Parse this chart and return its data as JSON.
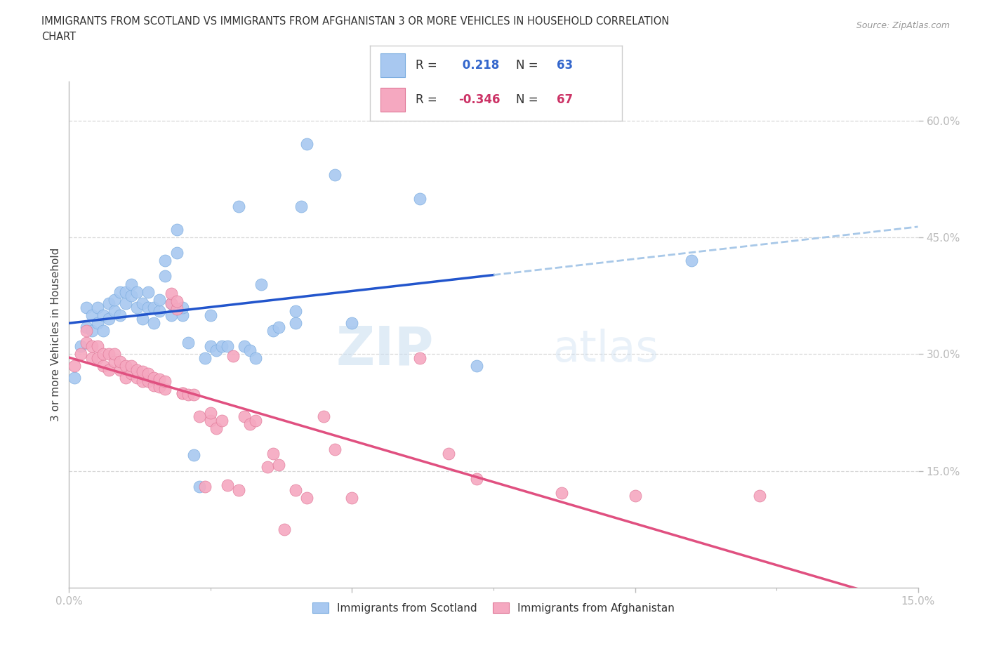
{
  "title_line1": "IMMIGRANTS FROM SCOTLAND VS IMMIGRANTS FROM AFGHANISTAN 3 OR MORE VEHICLES IN HOUSEHOLD CORRELATION",
  "title_line2": "CHART",
  "source": "Source: ZipAtlas.com",
  "ylabel": "3 or more Vehicles in Household",
  "x_min": 0.0,
  "x_max": 0.15,
  "y_min": 0.0,
  "y_max": 0.65,
  "x_ticks": [
    0.0,
    0.05,
    0.1,
    0.15
  ],
  "x_tick_labels": [
    "0.0%",
    "",
    "",
    "15.0%"
  ],
  "y_ticks_right": [
    0.15,
    0.3,
    0.45,
    0.6
  ],
  "y_tick_labels_right": [
    "15.0%",
    "30.0%",
    "45.0%",
    "60.0%"
  ],
  "scotland_color": "#a8c8f0",
  "scotland_edge_color": "#7aacdf",
  "afghanistan_color": "#f5a8c0",
  "afghanistan_edge_color": "#e07898",
  "scotland_line_color": "#2255cc",
  "scotland_line_dashed_color": "#a8c8e8",
  "afghanistan_line_color": "#e05080",
  "grid_color": "#d8d8d8",
  "watermark": "ZIPatlas",
  "legend_R_scotland": "R =  0.218",
  "legend_N_scotland": "N = 63",
  "legend_R_afghanistan": "R = -0.346",
  "legend_N_afghanistan": "N = 67",
  "scotland_points": [
    [
      0.001,
      0.27
    ],
    [
      0.002,
      0.31
    ],
    [
      0.003,
      0.335
    ],
    [
      0.003,
      0.36
    ],
    [
      0.004,
      0.33
    ],
    [
      0.004,
      0.35
    ],
    [
      0.005,
      0.34
    ],
    [
      0.005,
      0.36
    ],
    [
      0.006,
      0.33
    ],
    [
      0.006,
      0.35
    ],
    [
      0.007,
      0.345
    ],
    [
      0.007,
      0.365
    ],
    [
      0.008,
      0.355
    ],
    [
      0.008,
      0.37
    ],
    [
      0.009,
      0.35
    ],
    [
      0.009,
      0.38
    ],
    [
      0.01,
      0.365
    ],
    [
      0.01,
      0.38
    ],
    [
      0.011,
      0.375
    ],
    [
      0.011,
      0.39
    ],
    [
      0.012,
      0.36
    ],
    [
      0.012,
      0.38
    ],
    [
      0.013,
      0.345
    ],
    [
      0.013,
      0.365
    ],
    [
      0.014,
      0.36
    ],
    [
      0.014,
      0.38
    ],
    [
      0.015,
      0.34
    ],
    [
      0.015,
      0.36
    ],
    [
      0.016,
      0.355
    ],
    [
      0.016,
      0.37
    ],
    [
      0.017,
      0.4
    ],
    [
      0.017,
      0.42
    ],
    [
      0.018,
      0.35
    ],
    [
      0.018,
      0.365
    ],
    [
      0.019,
      0.43
    ],
    [
      0.019,
      0.46
    ],
    [
      0.02,
      0.35
    ],
    [
      0.02,
      0.36
    ],
    [
      0.021,
      0.315
    ],
    [
      0.022,
      0.17
    ],
    [
      0.023,
      0.13
    ],
    [
      0.024,
      0.295
    ],
    [
      0.025,
      0.31
    ],
    [
      0.025,
      0.35
    ],
    [
      0.026,
      0.305
    ],
    [
      0.027,
      0.31
    ],
    [
      0.028,
      0.31
    ],
    [
      0.03,
      0.49
    ],
    [
      0.031,
      0.31
    ],
    [
      0.032,
      0.305
    ],
    [
      0.033,
      0.295
    ],
    [
      0.034,
      0.39
    ],
    [
      0.036,
      0.33
    ],
    [
      0.037,
      0.335
    ],
    [
      0.04,
      0.34
    ],
    [
      0.04,
      0.355
    ],
    [
      0.041,
      0.49
    ],
    [
      0.042,
      0.57
    ],
    [
      0.047,
      0.53
    ],
    [
      0.05,
      0.34
    ],
    [
      0.062,
      0.5
    ],
    [
      0.072,
      0.285
    ],
    [
      0.11,
      0.42
    ]
  ],
  "afghanistan_points": [
    [
      0.001,
      0.285
    ],
    [
      0.002,
      0.3
    ],
    [
      0.003,
      0.315
    ],
    [
      0.003,
      0.33
    ],
    [
      0.004,
      0.295
    ],
    [
      0.004,
      0.31
    ],
    [
      0.005,
      0.295
    ],
    [
      0.005,
      0.31
    ],
    [
      0.006,
      0.285
    ],
    [
      0.006,
      0.3
    ],
    [
      0.007,
      0.28
    ],
    [
      0.007,
      0.3
    ],
    [
      0.008,
      0.29
    ],
    [
      0.008,
      0.3
    ],
    [
      0.009,
      0.28
    ],
    [
      0.009,
      0.29
    ],
    [
      0.01,
      0.27
    ],
    [
      0.01,
      0.285
    ],
    [
      0.011,
      0.275
    ],
    [
      0.011,
      0.285
    ],
    [
      0.012,
      0.27
    ],
    [
      0.012,
      0.28
    ],
    [
      0.013,
      0.265
    ],
    [
      0.013,
      0.278
    ],
    [
      0.014,
      0.265
    ],
    [
      0.014,
      0.275
    ],
    [
      0.015,
      0.26
    ],
    [
      0.015,
      0.27
    ],
    [
      0.016,
      0.258
    ],
    [
      0.016,
      0.268
    ],
    [
      0.017,
      0.255
    ],
    [
      0.017,
      0.265
    ],
    [
      0.018,
      0.365
    ],
    [
      0.018,
      0.378
    ],
    [
      0.019,
      0.358
    ],
    [
      0.019,
      0.368
    ],
    [
      0.02,
      0.25
    ],
    [
      0.02,
      0.25
    ],
    [
      0.021,
      0.248
    ],
    [
      0.022,
      0.248
    ],
    [
      0.023,
      0.22
    ],
    [
      0.024,
      0.13
    ],
    [
      0.025,
      0.215
    ],
    [
      0.025,
      0.225
    ],
    [
      0.026,
      0.205
    ],
    [
      0.027,
      0.215
    ],
    [
      0.028,
      0.132
    ],
    [
      0.029,
      0.298
    ],
    [
      0.03,
      0.125
    ],
    [
      0.031,
      0.22
    ],
    [
      0.032,
      0.21
    ],
    [
      0.033,
      0.215
    ],
    [
      0.035,
      0.155
    ],
    [
      0.036,
      0.172
    ],
    [
      0.037,
      0.158
    ],
    [
      0.038,
      0.075
    ],
    [
      0.04,
      0.125
    ],
    [
      0.042,
      0.115
    ],
    [
      0.045,
      0.22
    ],
    [
      0.047,
      0.178
    ],
    [
      0.05,
      0.115
    ],
    [
      0.062,
      0.295
    ],
    [
      0.067,
      0.172
    ],
    [
      0.072,
      0.14
    ],
    [
      0.087,
      0.122
    ],
    [
      0.1,
      0.118
    ],
    [
      0.122,
      0.118
    ]
  ]
}
